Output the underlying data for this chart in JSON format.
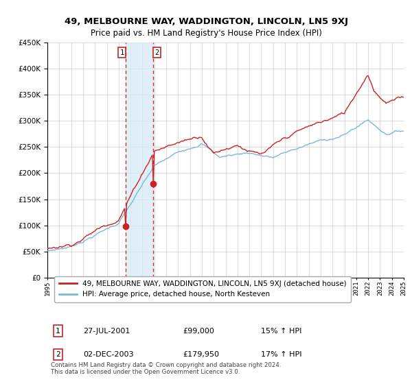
{
  "title": "49, MELBOURNE WAY, WADDINGTON, LINCOLN, LN5 9XJ",
  "subtitle": "Price paid vs. HM Land Registry's House Price Index (HPI)",
  "legend_line1": "49, MELBOURNE WAY, WADDINGTON, LINCOLN, LN5 9XJ (detached house)",
  "legend_line2": "HPI: Average price, detached house, North Kesteven",
  "transaction1_label": "1",
  "transaction1_date": "27-JUL-2001",
  "transaction1_price": "£99,000",
  "transaction1_hpi": "15% ↑ HPI",
  "transaction2_label": "2",
  "transaction2_date": "02-DEC-2003",
  "transaction2_price": "£179,950",
  "transaction2_hpi": "17% ↑ HPI",
  "footer": "Contains HM Land Registry data © Crown copyright and database right 2024.\nThis data is licensed under the Open Government Licence v3.0.",
  "hpi_color": "#7ab8d9",
  "price_color": "#cc2222",
  "vline_color": "#cc2222",
  "shade_color": "#d8eaf5",
  "ylim_min": 0,
  "ylim_max": 450000,
  "ytick_step": 50000,
  "start_year": 1995,
  "end_year": 2025,
  "transaction1_year": 2001.58,
  "transaction2_year": 2003.92,
  "transaction1_value": 99000,
  "transaction2_value": 179950
}
